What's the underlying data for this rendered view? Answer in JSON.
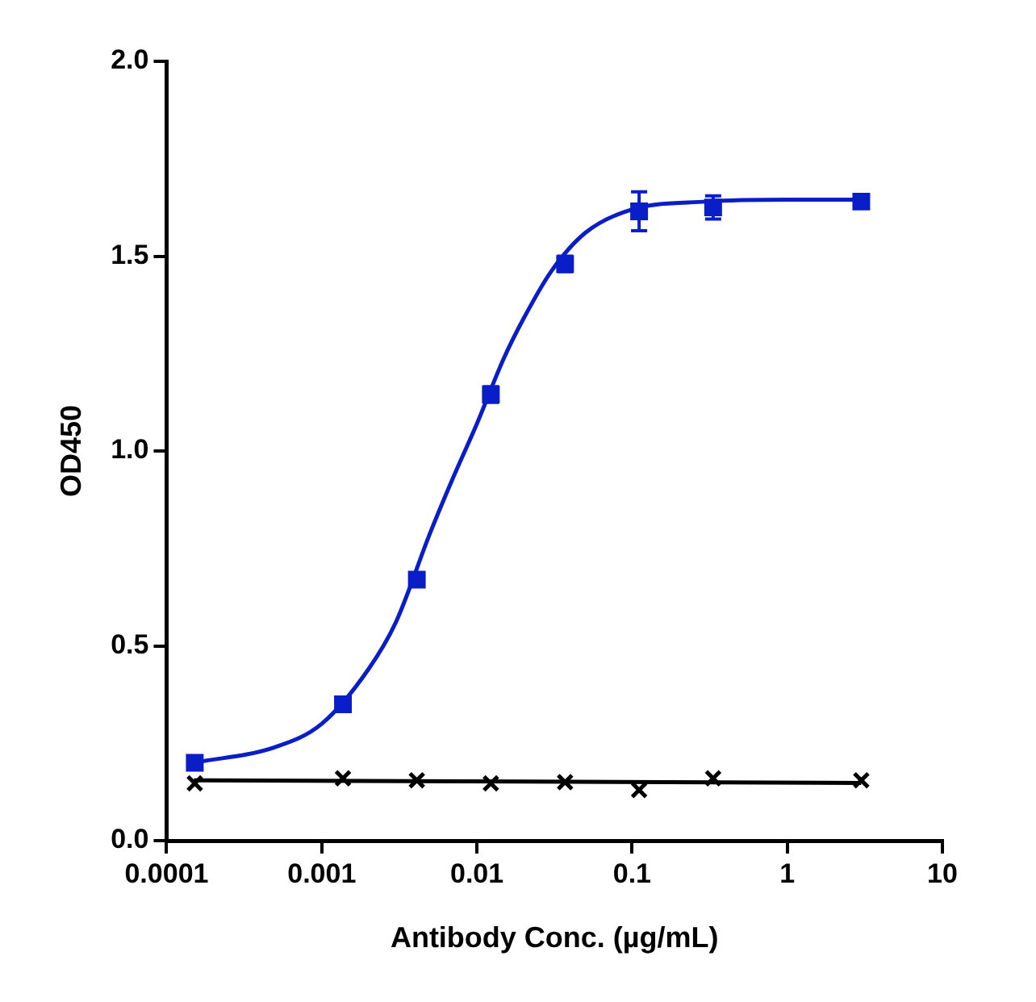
{
  "chart_data": {
    "type": "scatter",
    "xlabel": "Antibody Conc. (µg/mL)",
    "ylabel": "OD450",
    "log": "x",
    "grid": false,
    "xlim": [
      0.0001,
      10
    ],
    "xticks": [
      0.0001,
      0.001,
      0.01,
      0.1,
      1,
      10
    ],
    "ylim": [
      0,
      2
    ],
    "yticks": [
      {
        "value": 0,
        "label": "0.0"
      },
      {
        "value": 0.5,
        "label": "0.5"
      },
      {
        "value": 1,
        "label": "1.0"
      },
      {
        "value": 1.5,
        "label": "1.5"
      },
      {
        "value": 2,
        "label": "2.0"
      }
    ],
    "series": [
      {
        "type": "scatter",
        "color": "#0a1ec8",
        "marker": "square",
        "x": [
          0.000152,
          0.00137,
          0.0041,
          0.0123,
          0.037,
          0.111,
          0.333,
          3
        ],
        "values": [
          0.2,
          0.35,
          0.67,
          1.145,
          1.48,
          1.615,
          1.625,
          1.64
        ],
        "errors": [
          null,
          null,
          null,
          0.02,
          0.02,
          0.05,
          0.03,
          null
        ]
      },
      {
        "type": "line",
        "color": "#0a1ec8",
        "marker": "none",
        "line_style": "solid",
        "x": [
          0.00015,
          0.0005,
          0.001,
          0.002,
          0.003,
          0.005,
          0.007,
          0.01,
          0.015,
          0.02,
          0.03,
          0.05,
          0.1,
          0.3,
          1,
          3
        ],
        "values": [
          0.2,
          0.24,
          0.3,
          0.44,
          0.56,
          0.79,
          0.93,
          1.07,
          1.24,
          1.34,
          1.46,
          1.56,
          1.62,
          1.64,
          1.645,
          1.645
        ]
      },
      {
        "type": "scatter",
        "color": "#000000",
        "marker": "cross",
        "x": [
          0.000152,
          0.00137,
          0.0041,
          0.0123,
          0.037,
          0.111,
          0.333,
          3
        ],
        "values": [
          0.147,
          0.16,
          0.155,
          0.147,
          0.15,
          0.13,
          0.16,
          0.155
        ]
      },
      {
        "type": "line",
        "color": "#000000",
        "marker": "none",
        "line_style": "solid",
        "x": [
          0.00015,
          3
        ],
        "values": [
          0.155,
          0.148
        ]
      }
    ]
  }
}
